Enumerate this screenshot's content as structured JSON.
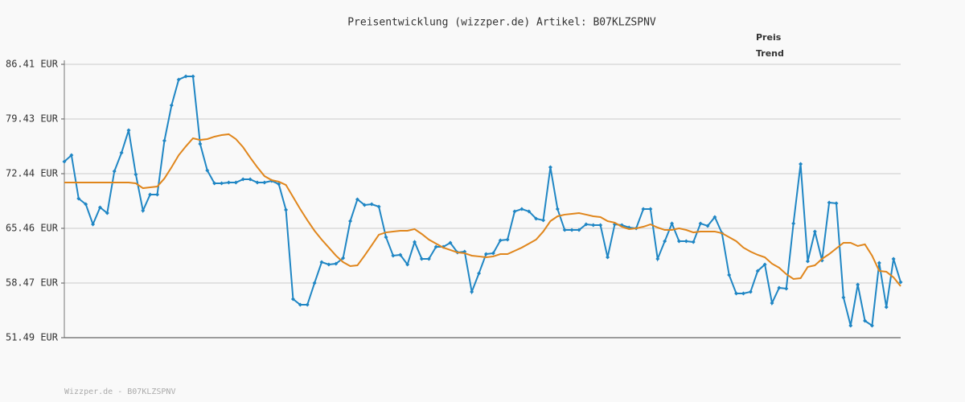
{
  "chart_data": {
    "type": "line",
    "title": "Preisentwicklung (wizzper.de) Artikel: B07KLZSPNV",
    "footer": "Wizzper.de - B07KLZSPNV",
    "ylim": [
      51.49,
      86.41
    ],
    "yticks": [
      {
        "value": 51.49,
        "label": "51.49 EUR"
      },
      {
        "value": 58.47,
        "label": "58.47 EUR"
      },
      {
        "value": 65.46,
        "label": "65.46 EUR"
      },
      {
        "value": 72.44,
        "label": "72.44 EUR"
      },
      {
        "value": 79.43,
        "label": "79.43 EUR"
      },
      {
        "value": 86.41,
        "label": "86.41 EUR"
      }
    ],
    "grid": true,
    "legend": "top-right",
    "series": [
      {
        "name": "Preis",
        "color": "#1f86c4",
        "markers": true,
        "values": [
          73.98,
          74.8,
          69.26,
          68.54,
          65.97,
          68.13,
          67.41,
          72.75,
          75.11,
          77.99,
          72.34,
          67.72,
          69.77,
          69.77,
          76.65,
          81.17,
          84.46,
          84.87,
          84.87,
          76.24,
          72.85,
          71.21,
          71.21,
          71.31,
          71.31,
          71.72,
          71.72,
          71.31,
          71.31,
          71.52,
          71.11,
          67.82,
          56.42,
          55.7,
          55.7,
          58.47,
          61.14,
          60.84,
          60.94,
          61.66,
          66.38,
          69.16,
          68.44,
          68.54,
          68.23,
          64.33,
          61.97,
          62.07,
          60.84,
          63.71,
          61.56,
          61.56,
          63.1,
          63.1,
          63.61,
          62.38,
          62.48,
          57.35,
          59.71,
          62.17,
          62.28,
          63.92,
          64.02,
          67.62,
          67.92,
          67.62,
          66.69,
          66.49,
          73.26,
          67.92,
          65.25,
          65.25,
          65.25,
          65.97,
          65.87,
          65.87,
          61.76,
          65.97,
          65.87,
          65.56,
          65.46,
          67.92,
          67.92,
          61.56,
          63.82,
          66.08,
          63.82,
          63.82,
          63.71,
          66.08,
          65.77,
          66.9,
          64.84,
          59.5,
          57.14,
          57.14,
          57.35,
          60.02,
          60.84,
          55.91,
          57.86,
          57.76,
          66.08,
          73.68,
          61.25,
          65.05,
          61.35,
          68.75,
          68.65,
          56.63,
          53.03,
          58.27,
          53.65,
          53.03,
          61.04,
          55.39,
          61.56,
          58.58
        ]
      },
      {
        "name": "Trend",
        "color": "#e0861c",
        "markers": false,
        "values": [
          71.31,
          71.31,
          71.31,
          71.31,
          71.31,
          71.31,
          71.31,
          71.31,
          71.31,
          71.31,
          71.21,
          70.59,
          70.7,
          70.8,
          71.83,
          73.26,
          74.8,
          75.93,
          76.96,
          76.75,
          76.86,
          77.17,
          77.37,
          77.48,
          76.86,
          75.83,
          74.5,
          73.26,
          72.13,
          71.62,
          71.42,
          71.0,
          69.46,
          67.92,
          66.49,
          65.15,
          64.02,
          63.0,
          61.97,
          61.14,
          60.63,
          60.73,
          61.97,
          63.3,
          64.64,
          64.94,
          65.05,
          65.15,
          65.15,
          65.36,
          64.74,
          64.02,
          63.51,
          63.0,
          62.69,
          62.38,
          62.28,
          61.97,
          61.87,
          61.76,
          61.87,
          62.17,
          62.17,
          62.58,
          63.0,
          63.51,
          64.02,
          65.05,
          66.38,
          67.0,
          67.21,
          67.31,
          67.41,
          67.21,
          67.0,
          66.9,
          66.38,
          66.18,
          65.66,
          65.36,
          65.46,
          65.66,
          65.97,
          65.56,
          65.25,
          65.25,
          65.46,
          65.25,
          64.94,
          65.05,
          65.05,
          65.05,
          64.84,
          64.33,
          63.82,
          63.0,
          62.48,
          62.07,
          61.76,
          60.94,
          60.43,
          59.61,
          58.99,
          59.09,
          60.53,
          60.73,
          61.56,
          62.17,
          62.89,
          63.61,
          63.61,
          63.2,
          63.41,
          61.97,
          60.02,
          59.91,
          59.19,
          58.07
        ]
      }
    ]
  }
}
